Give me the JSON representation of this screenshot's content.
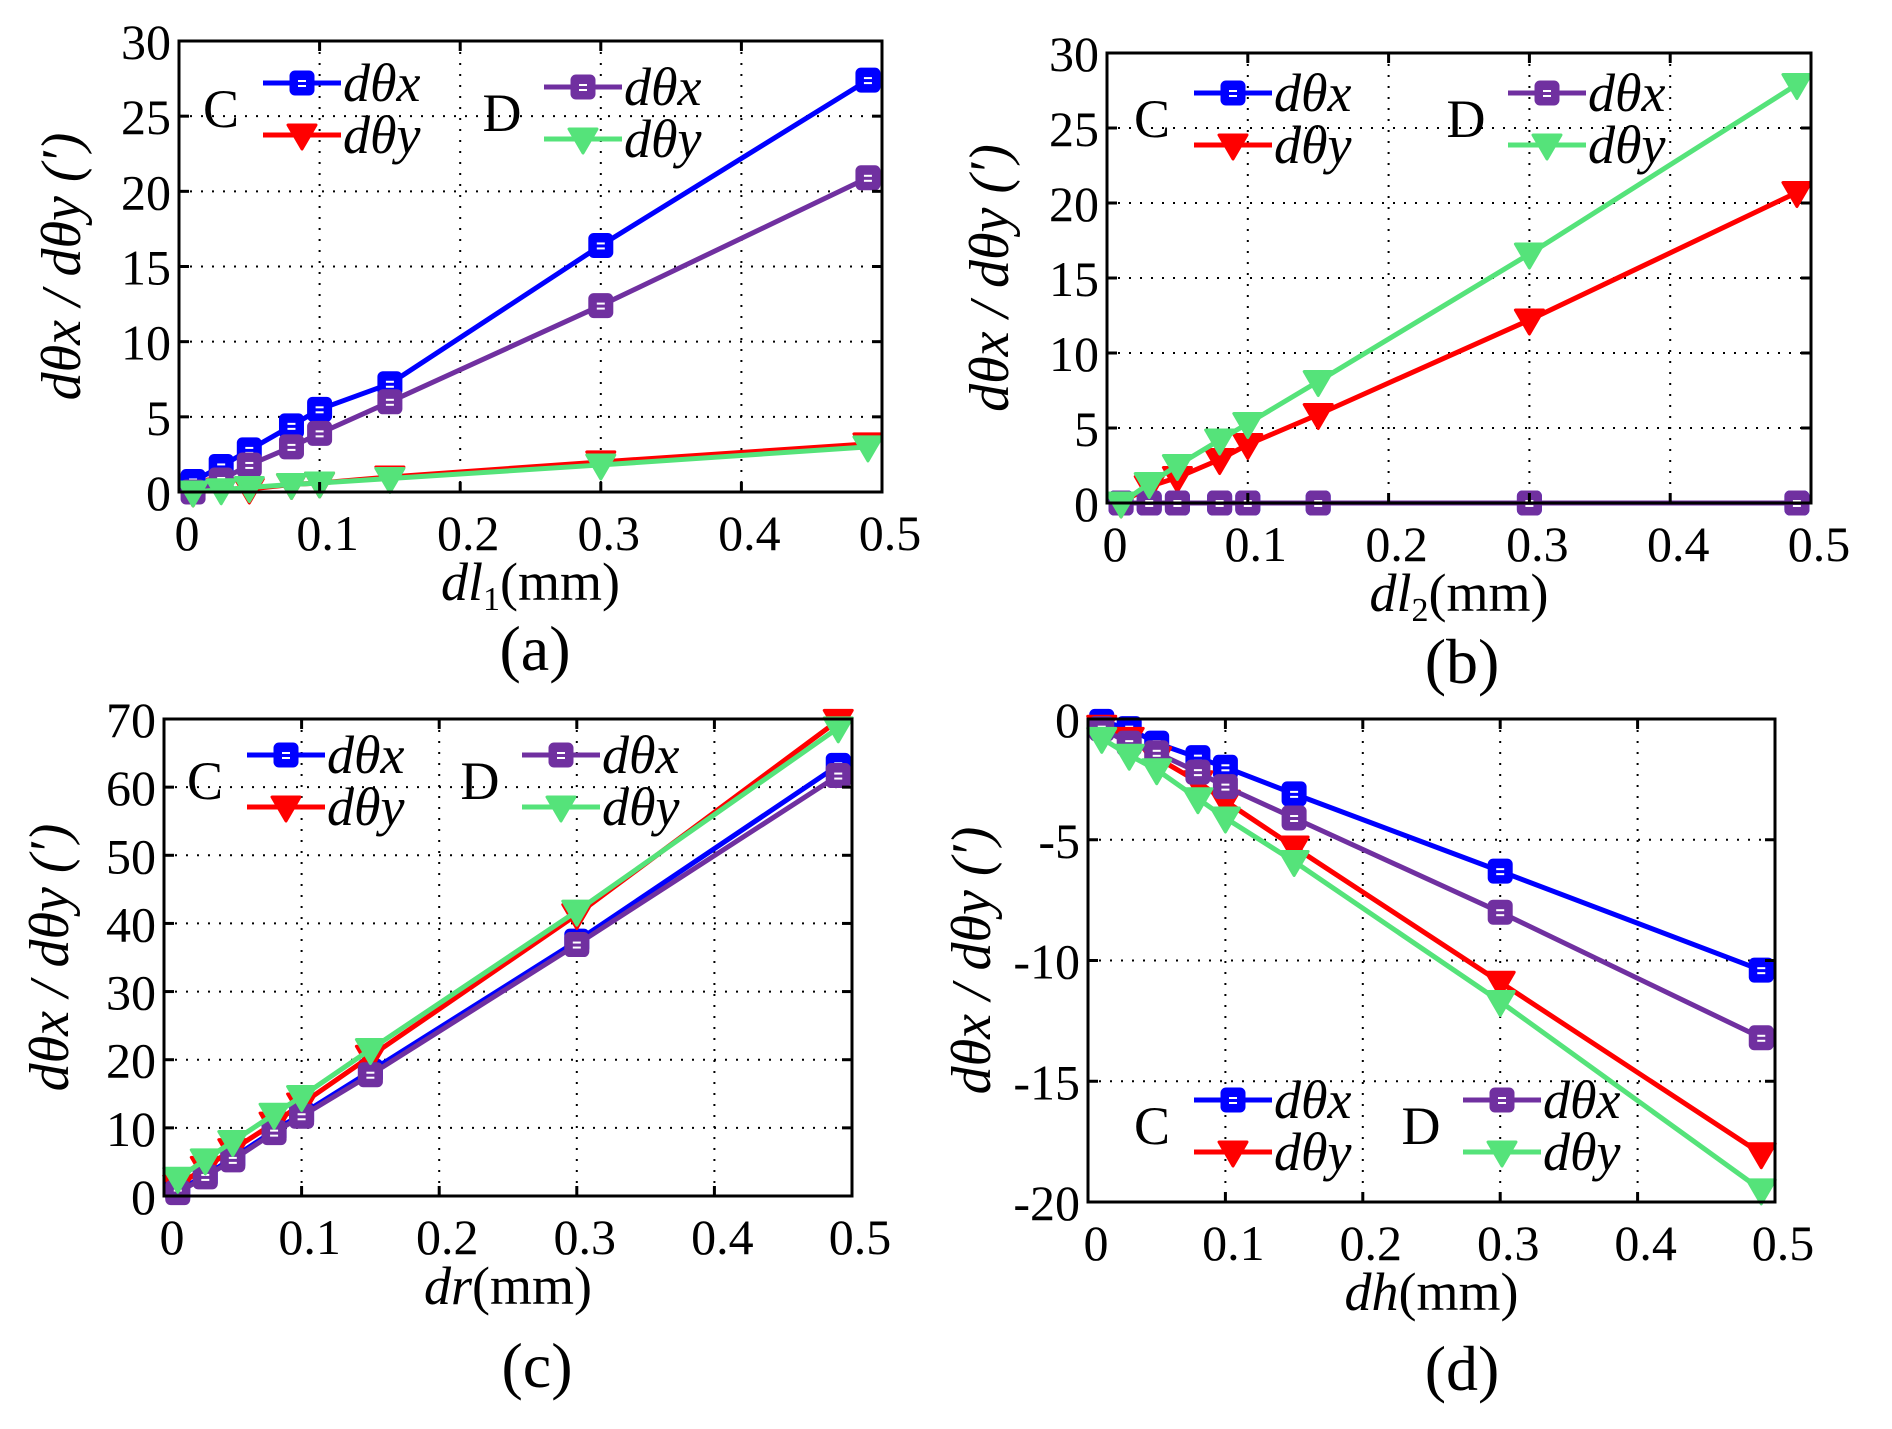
{
  "figure": {
    "y_axis_label": "dθx / dθy (′)",
    "units_suffix": "(mm)"
  },
  "colors": {
    "C_dthetax": "#0000ff",
    "C_dthetay": "#ff0000",
    "D_dthetax": "#7030a0",
    "D_dthetay": "#55e37a"
  },
  "chart_data": [
    {
      "id": "a",
      "type": "line",
      "panel_label": "(a)",
      "xlabel_var": "dl",
      "xlabel_sub": "1",
      "xlabel_unit": "(mm)",
      "ylabel": "dθx / dθy (′)",
      "xlim": [
        0,
        0.5
      ],
      "ylim": [
        0,
        30
      ],
      "xticks": [
        "0",
        "0.1",
        "0.2",
        "0.3",
        "0.4",
        "0.5"
      ],
      "yticks": [
        "0",
        "5",
        "10",
        "15",
        "20",
        "25",
        "30"
      ],
      "grid": true,
      "legend_placement": "top-left",
      "x": [
        0.01,
        0.03,
        0.05,
        0.08,
        0.1,
        0.15,
        0.3,
        0.49
      ],
      "series": [
        {
          "group": "C",
          "name": "dθx",
          "marker": "square",
          "color_key": "C_dthetax",
          "values": [
            0.7,
            1.7,
            2.8,
            4.4,
            5.5,
            7.2,
            16.4,
            27.4
          ]
        },
        {
          "group": "C",
          "name": "dθy",
          "marker": "triangle-down",
          "color_key": "C_dthetay",
          "values": [
            0.0,
            0.2,
            0.2,
            0.5,
            0.6,
            1.0,
            2.0,
            3.2
          ]
        },
        {
          "group": "D",
          "name": "dθx",
          "marker": "square",
          "color_key": "D_dthetax",
          "values": [
            0.0,
            0.8,
            1.8,
            3.0,
            3.9,
            6.0,
            12.4,
            20.9
          ]
        },
        {
          "group": "D",
          "name": "dθy",
          "marker": "triangle-down",
          "color_key": "D_dthetay",
          "values": [
            0.0,
            0.15,
            0.3,
            0.5,
            0.6,
            0.9,
            1.8,
            3.0
          ]
        }
      ]
    },
    {
      "id": "b",
      "type": "line",
      "panel_label": "(b)",
      "xlabel_var": "dl",
      "xlabel_sub": "2",
      "xlabel_unit": "(mm)",
      "ylabel": "dθx / dθy (′)",
      "xlim": [
        0,
        0.5
      ],
      "ylim": [
        0,
        30
      ],
      "xticks": [
        "0",
        "0.1",
        "0.2",
        "0.3",
        "0.4",
        "0.5"
      ],
      "yticks": [
        "0",
        "5",
        "10",
        "15",
        "20",
        "25",
        "30"
      ],
      "grid": true,
      "legend_placement": "top-left",
      "x": [
        0.01,
        0.03,
        0.05,
        0.08,
        0.1,
        0.15,
        0.3,
        0.49
      ],
      "series": [
        {
          "group": "C",
          "name": "dθx",
          "marker": "square",
          "color_key": "C_dthetax",
          "values": [
            0,
            0,
            0,
            0,
            0,
            0,
            0,
            0
          ]
        },
        {
          "group": "C",
          "name": "dθy",
          "marker": "triangle-down",
          "color_key": "C_dthetay",
          "values": [
            0.0,
            1.1,
            1.7,
            2.9,
            3.9,
            5.9,
            12.2,
            20.7
          ]
        },
        {
          "group": "D",
          "name": "dθx",
          "marker": "square",
          "color_key": "D_dthetax",
          "values": [
            0,
            0,
            0,
            0,
            0,
            0,
            0,
            0
          ]
        },
        {
          "group": "D",
          "name": "dθy",
          "marker": "triangle-down",
          "color_key": "D_dthetay",
          "values": [
            0.0,
            1.3,
            2.5,
            4.2,
            5.3,
            8.1,
            16.6,
            27.9
          ]
        }
      ]
    },
    {
      "id": "c",
      "type": "line",
      "panel_label": "(c)",
      "xlabel_var": "dr",
      "xlabel_sub": "",
      "xlabel_unit": "(mm)",
      "ylabel": "dθx / dθy (′)",
      "xlim": [
        0,
        0.5
      ],
      "ylim": [
        0,
        70
      ],
      "xticks": [
        "0",
        "0.1",
        "0.2",
        "0.3",
        "0.4",
        "0.5"
      ],
      "yticks": [
        "0",
        "10",
        "20",
        "30",
        "40",
        "50",
        "60",
        "70"
      ],
      "grid": true,
      "legend_placement": "top-left",
      "x": [
        0.01,
        0.03,
        0.05,
        0.08,
        0.1,
        0.15,
        0.3,
        0.49
      ],
      "series": [
        {
          "group": "C",
          "name": "dθx",
          "marker": "square",
          "color_key": "C_dthetax",
          "values": [
            0.8,
            3.0,
            5.6,
            9.6,
            12.0,
            18.3,
            37.4,
            63.2
          ]
        },
        {
          "group": "C",
          "name": "dθy",
          "marker": "triangle-down",
          "color_key": "C_dthetay",
          "values": [
            1.5,
            4.2,
            6.8,
            10.7,
            13.5,
            20.5,
            41.3,
            69.8
          ]
        },
        {
          "group": "D",
          "name": "dθx",
          "marker": "square",
          "color_key": "D_dthetax",
          "values": [
            0.5,
            2.8,
            5.3,
            9.3,
            11.7,
            17.8,
            36.9,
            61.7
          ]
        },
        {
          "group": "D",
          "name": "dθy",
          "marker": "triangle-down",
          "color_key": "D_dthetay",
          "values": [
            2.6,
            5.3,
            8.0,
            12.0,
            14.6,
            21.5,
            41.8,
            68.7
          ]
        }
      ]
    },
    {
      "id": "d",
      "type": "line",
      "panel_label": "(d)",
      "xlabel_var": "dh",
      "xlabel_sub": "",
      "xlabel_unit": "(mm)",
      "ylabel": "dθx / dθy (′)",
      "xlim": [
        0,
        0.5
      ],
      "ylim": [
        -20,
        0
      ],
      "xticks": [
        "0",
        "0.1",
        "0.2",
        "0.3",
        "0.4",
        "0.5"
      ],
      "yticks": [
        "-20",
        "-15",
        "-10",
        "-5",
        "0"
      ],
      "grid": true,
      "legend_placement": "bottom-left",
      "x": [
        0.01,
        0.03,
        0.05,
        0.08,
        0.1,
        0.15,
        0.3,
        0.49
      ],
      "series": [
        {
          "group": "C",
          "name": "dθx",
          "marker": "square",
          "color_key": "C_dthetax",
          "values": [
            -0.1,
            -0.4,
            -1.0,
            -1.6,
            -2.0,
            -3.1,
            -6.3,
            -10.4
          ]
        },
        {
          "group": "C",
          "name": "dθy",
          "marker": "triangle-down",
          "color_key": "C_dthetay",
          "values": [
            -0.3,
            -0.8,
            -1.6,
            -2.6,
            -3.4,
            -5.3,
            -10.9,
            -18.0
          ]
        },
        {
          "group": "D",
          "name": "dθx",
          "marker": "square",
          "color_key": "D_dthetax",
          "values": [
            -0.4,
            -1.0,
            -1.4,
            -2.2,
            -2.8,
            -4.1,
            -8.0,
            -13.2
          ]
        },
        {
          "group": "D",
          "name": "dθy",
          "marker": "triangle-down",
          "color_key": "D_dthetay",
          "values": [
            -0.8,
            -1.5,
            -2.1,
            -3.3,
            -4.1,
            -5.9,
            -11.7,
            -19.5
          ]
        }
      ]
    }
  ]
}
